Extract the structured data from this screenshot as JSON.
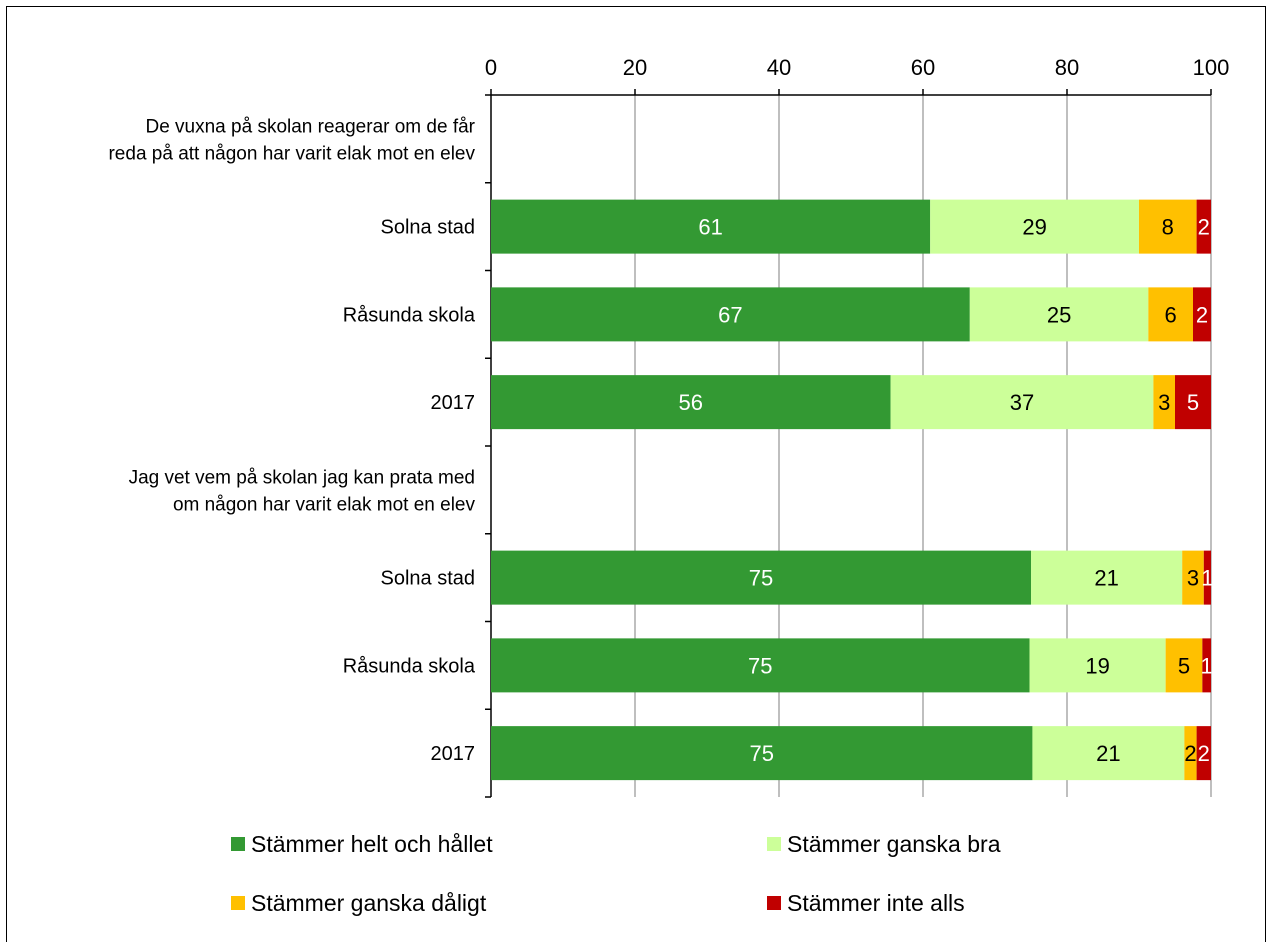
{
  "chart_data": {
    "type": "bar",
    "orientation": "horizontal",
    "stacked": true,
    "xlim": [
      0,
      100
    ],
    "xticks": [
      "0",
      "20",
      "40",
      "60",
      "80",
      "100"
    ],
    "grid": true,
    "legend_position": "bottom",
    "groups": [
      {
        "label": "De vuxna på skolan reagerar om de får reda på att någon har varit elak mot en elev",
        "label_lines": [
          "De vuxna på skolan reagerar om de får",
          "reda på att någon har varit elak mot en elev"
        ],
        "rows": [
          {
            "category": "Solna stad",
            "values": [
              61,
              29,
              8,
              2
            ],
            "totals": [
              61,
              29,
              8,
              2
            ]
          },
          {
            "category": "Råsunda skola",
            "values": [
              67,
              25,
              6,
              2
            ],
            "totals": [
              66.5,
              24.8,
              6.2,
              2.5
            ]
          },
          {
            "category": "2017",
            "values": [
              56,
              37,
              3,
              5
            ],
            "totals": [
              55.5,
              36.5,
              3.0,
              5.0
            ]
          }
        ]
      },
      {
        "label": "Jag vet vem på skolan jag kan prata med om någon har varit elak mot en elev",
        "label_lines": [
          "Jag vet vem på skolan jag kan prata med",
          "om någon har varit elak mot en elev"
        ],
        "rows": [
          {
            "category": "Solna stad",
            "values": [
              75,
              21,
              3,
              1
            ],
            "totals": [
              75,
              21,
              3,
              1
            ]
          },
          {
            "category": "Råsunda skola",
            "values": [
              75,
              19,
              5,
              1
            ],
            "totals": [
              74.8,
              18.9,
              5.1,
              1.2
            ]
          },
          {
            "category": "2017",
            "values": [
              75,
              21,
              2,
              2
            ],
            "totals": [
              75.2,
              21.1,
              1.7,
              2.0
            ]
          }
        ]
      }
    ],
    "series": [
      {
        "name": "Stämmer helt och hållet",
        "color": "#339933",
        "label_color": "#ffffff"
      },
      {
        "name": "Stämmer ganska bra",
        "color": "#ccff99",
        "label_color": "#000000"
      },
      {
        "name": "Stämmer ganska dåligt",
        "color": "#ffc000",
        "label_color": "#000000"
      },
      {
        "name": "Stämmer inte alls",
        "color": "#c00000",
        "label_color": "#ffffff"
      }
    ]
  }
}
